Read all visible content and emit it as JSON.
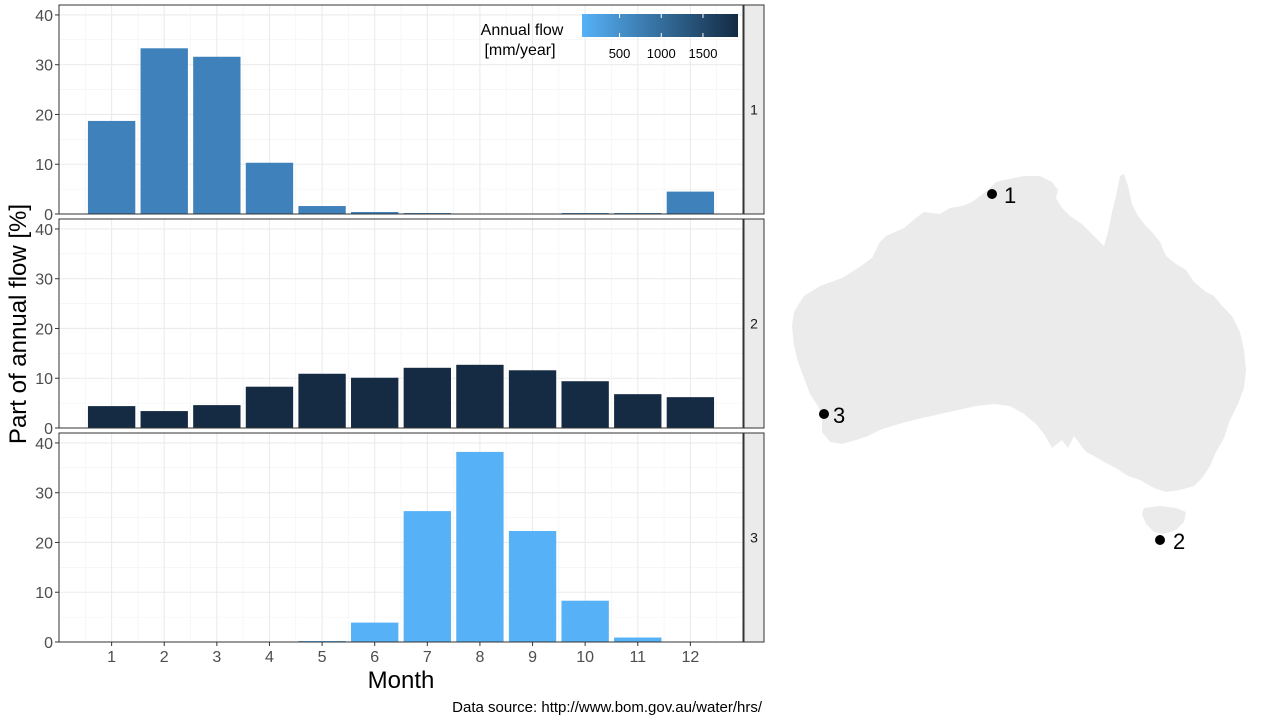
{
  "chart_data": {
    "type": "bar",
    "xlabel": "Month",
    "ylabel": "Part of annual flow [%]",
    "ylim": [
      0,
      42
    ],
    "yticks": [
      0,
      10,
      20,
      30,
      40
    ],
    "categories": [
      "1",
      "2",
      "3",
      "4",
      "5",
      "6",
      "7",
      "8",
      "9",
      "10",
      "11",
      "12"
    ],
    "grid": true,
    "legend": {
      "title_line1": "Annual flow",
      "title_line2": "[mm/year]",
      "placement": "top-right",
      "range": [
        50,
        1920
      ],
      "ticks": [
        500,
        1000,
        1500
      ],
      "tick_labels": [
        "500",
        "1000",
        "1500"
      ],
      "color_low": "#56B1F7",
      "color_high": "#132B43"
    },
    "facets": [
      {
        "strip_label": "1",
        "color": "#3F81BA",
        "annual_flow": 1000,
        "values": [
          18.7,
          33.3,
          31.6,
          10.3,
          1.6,
          0.4,
          0.2,
          0.0,
          0.0,
          0.2,
          0.2,
          4.5
        ]
      },
      {
        "strip_label": "2",
        "color": "#152B44",
        "annual_flow": 1900,
        "values": [
          4.4,
          3.4,
          4.6,
          8.3,
          10.9,
          10.1,
          12.1,
          12.7,
          11.6,
          9.4,
          6.8,
          6.2
        ]
      },
      {
        "strip_label": "3",
        "color": "#56B1F7",
        "annual_flow": 60,
        "values": [
          0.0,
          0.0,
          0.0,
          0.0,
          0.2,
          3.9,
          26.3,
          38.2,
          22.3,
          8.3,
          0.9,
          0.0
        ]
      }
    ],
    "source": "Data source: http://www.bom.gov.au/water/hrs/"
  },
  "map": {
    "fill": "#EBEBEB",
    "stations": [
      {
        "label": "1"
      },
      {
        "label": "2"
      },
      {
        "label": "3"
      }
    ]
  }
}
